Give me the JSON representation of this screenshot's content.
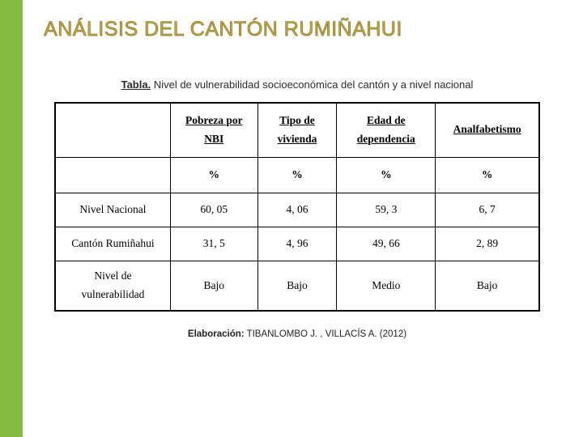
{
  "title": "ANÁLISIS DEL CANTÓN RUMIÑAHUI",
  "caption_bold": "Tabla.",
  "caption_rest": " Nivel de vulnerabilidad socioeconómica del cantón y a nivel nacional",
  "headers": {
    "c1_l1": "Pobreza por",
    "c1_l2": "NBI",
    "c2_l1": "Tipo de",
    "c2_l2": "vivienda",
    "c3_l1": "Edad de",
    "c3_l2": "dependencia",
    "c4_l1": "Analfabetismo"
  },
  "pct": "%",
  "rows": [
    {
      "label": "Nivel Nacional",
      "c1": "60, 05",
      "c2": "4, 06",
      "c3": "59, 3",
      "c4": "6, 7"
    },
    {
      "label": "Cantón Rumiñahui",
      "c1": "31, 5",
      "c2": "4, 96",
      "c3": "49, 66",
      "c4": "2, 89"
    },
    {
      "label_l1": "Nivel de",
      "label_l2": "vulnerabilidad",
      "c1": "Bajo",
      "c2": "Bajo",
      "c3": "Medio",
      "c4": "Bajo"
    }
  ],
  "credit_bold": "Elaboración:",
  "credit_rest": " TIBANLOMBO J. , VILLACÍS A. (2012)",
  "colors": {
    "stripe": "#84bb41",
    "title": "#c4a838"
  }
}
